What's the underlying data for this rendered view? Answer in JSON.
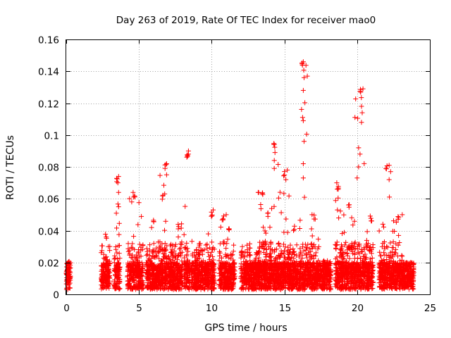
{
  "chart_data": {
    "type": "scatter",
    "title": "Day 263 of 2019, Rate Of TEC Index for receiver mao0",
    "xlabel": "GPS time / hours",
    "ylabel": "ROTI / TECUs",
    "xlim": [
      0,
      25
    ],
    "ylim": [
      0,
      0.16
    ],
    "x_ticks": [
      "0",
      "5",
      "10",
      "15",
      "20",
      "25"
    ],
    "y_ticks": [
      "0",
      "0.02",
      "0.04",
      "0.06",
      "0.08",
      "0.1",
      "0.12",
      "0.14",
      "0.16"
    ],
    "grid": true,
    "marker": "+",
    "color": "#ff0000",
    "clusters": [
      {
        "x": [
          0.0,
          0.3
        ],
        "ymax": 0.022
      },
      {
        "x": [
          2.4,
          3.0
        ],
        "ymax": 0.038
      },
      {
        "x": [
          3.3,
          3.7
        ],
        "ymax": 0.074
      },
      {
        "x": [
          4.2,
          5.3
        ],
        "ymax": 0.064
      },
      {
        "x": [
          5.5,
          6.3
        ],
        "ymax": 0.048
      },
      {
        "x": [
          6.3,
          7.2
        ],
        "ymax": 0.082
      },
      {
        "x": [
          7.2,
          8.0
        ],
        "ymax": 0.045
      },
      {
        "x": [
          8.1,
          8.5
        ],
        "ymax": 0.09
      },
      {
        "x": [
          8.6,
          9.6
        ],
        "ymax": 0.034
      },
      {
        "x": [
          9.6,
          10.2
        ],
        "ymax": 0.053
      },
      {
        "x": [
          10.5,
          11.0
        ],
        "ymax": 0.05
      },
      {
        "x": [
          11.0,
          11.6
        ],
        "ymax": 0.042
      },
      {
        "x": [
          12.0,
          13.3
        ],
        "ymax": 0.032
      },
      {
        "x": [
          13.2,
          13.7
        ],
        "ymax": 0.064
      },
      {
        "x": [
          13.6,
          14.1
        ],
        "ymax": 0.052
      },
      {
        "x": [
          14.0,
          14.6
        ],
        "ymax": 0.095
      },
      {
        "x": [
          14.6,
          15.4
        ],
        "ymax": 0.078
      },
      {
        "x": [
          15.3,
          15.9
        ],
        "ymax": 0.044
      },
      {
        "x": [
          15.9,
          16.6
        ],
        "ymax": 0.146
      },
      {
        "x": [
          16.6,
          17.4
        ],
        "ymax": 0.05
      },
      {
        "x": [
          17.4,
          18.2
        ],
        "ymax": 0.022
      },
      {
        "x": [
          18.5,
          19.0
        ],
        "ymax": 0.07
      },
      {
        "x": [
          18.9,
          19.8
        ],
        "ymax": 0.058
      },
      {
        "x": [
          19.8,
          20.6
        ],
        "ymax": 0.129
      },
      {
        "x": [
          20.6,
          21.1
        ],
        "ymax": 0.05
      },
      {
        "x": [
          21.5,
          22.4
        ],
        "ymax": 0.081
      },
      {
        "x": [
          22.4,
          23.1
        ],
        "ymax": 0.05
      },
      {
        "x": [
          23.1,
          23.9
        ],
        "ymax": 0.02
      }
    ],
    "highlights": [
      {
        "x": 16.3,
        "y": 0.146
      },
      {
        "x": 16.35,
        "y": 0.136
      },
      {
        "x": 16.3,
        "y": 0.128
      },
      {
        "x": 16.3,
        "y": 0.109
      },
      {
        "x": 16.35,
        "y": 0.096
      },
      {
        "x": 16.3,
        "y": 0.082
      },
      {
        "x": 16.3,
        "y": 0.073
      },
      {
        "x": 20.4,
        "y": 0.129
      },
      {
        "x": 20.3,
        "y": 0.118
      },
      {
        "x": 20.35,
        "y": 0.114
      },
      {
        "x": 20.3,
        "y": 0.108
      },
      {
        "x": 20.1,
        "y": 0.092
      },
      {
        "x": 20.2,
        "y": 0.088
      },
      {
        "x": 20.1,
        "y": 0.08
      },
      {
        "x": 20.0,
        "y": 0.073
      },
      {
        "x": 14.3,
        "y": 0.094
      },
      {
        "x": 14.35,
        "y": 0.089
      },
      {
        "x": 14.3,
        "y": 0.084
      },
      {
        "x": 14.3,
        "y": 0.079
      },
      {
        "x": 8.4,
        "y": 0.09
      },
      {
        "x": 8.35,
        "y": 0.087
      },
      {
        "x": 8.4,
        "y": 0.088
      },
      {
        "x": 6.9,
        "y": 0.082
      },
      {
        "x": 6.9,
        "y": 0.075
      },
      {
        "x": 3.6,
        "y": 0.074
      },
      {
        "x": 3.55,
        "y": 0.07
      },
      {
        "x": 3.6,
        "y": 0.064
      },
      {
        "x": 3.6,
        "y": 0.055
      },
      {
        "x": 22.2,
        "y": 0.081
      },
      {
        "x": 22.3,
        "y": 0.077
      },
      {
        "x": 22.2,
        "y": 0.072
      },
      {
        "x": 15.2,
        "y": 0.078
      },
      {
        "x": 15.1,
        "y": 0.072
      },
      {
        "x": 13.2,
        "y": 0.064
      },
      {
        "x": 18.6,
        "y": 0.07
      },
      {
        "x": 18.7,
        "y": 0.066
      },
      {
        "x": 4.6,
        "y": 0.064
      },
      {
        "x": 4.5,
        "y": 0.058
      },
      {
        "x": 10.1,
        "y": 0.053
      },
      {
        "x": 11.0,
        "y": 0.05
      },
      {
        "x": 23.1,
        "y": 0.05
      },
      {
        "x": 16.9,
        "y": 0.05
      }
    ]
  }
}
